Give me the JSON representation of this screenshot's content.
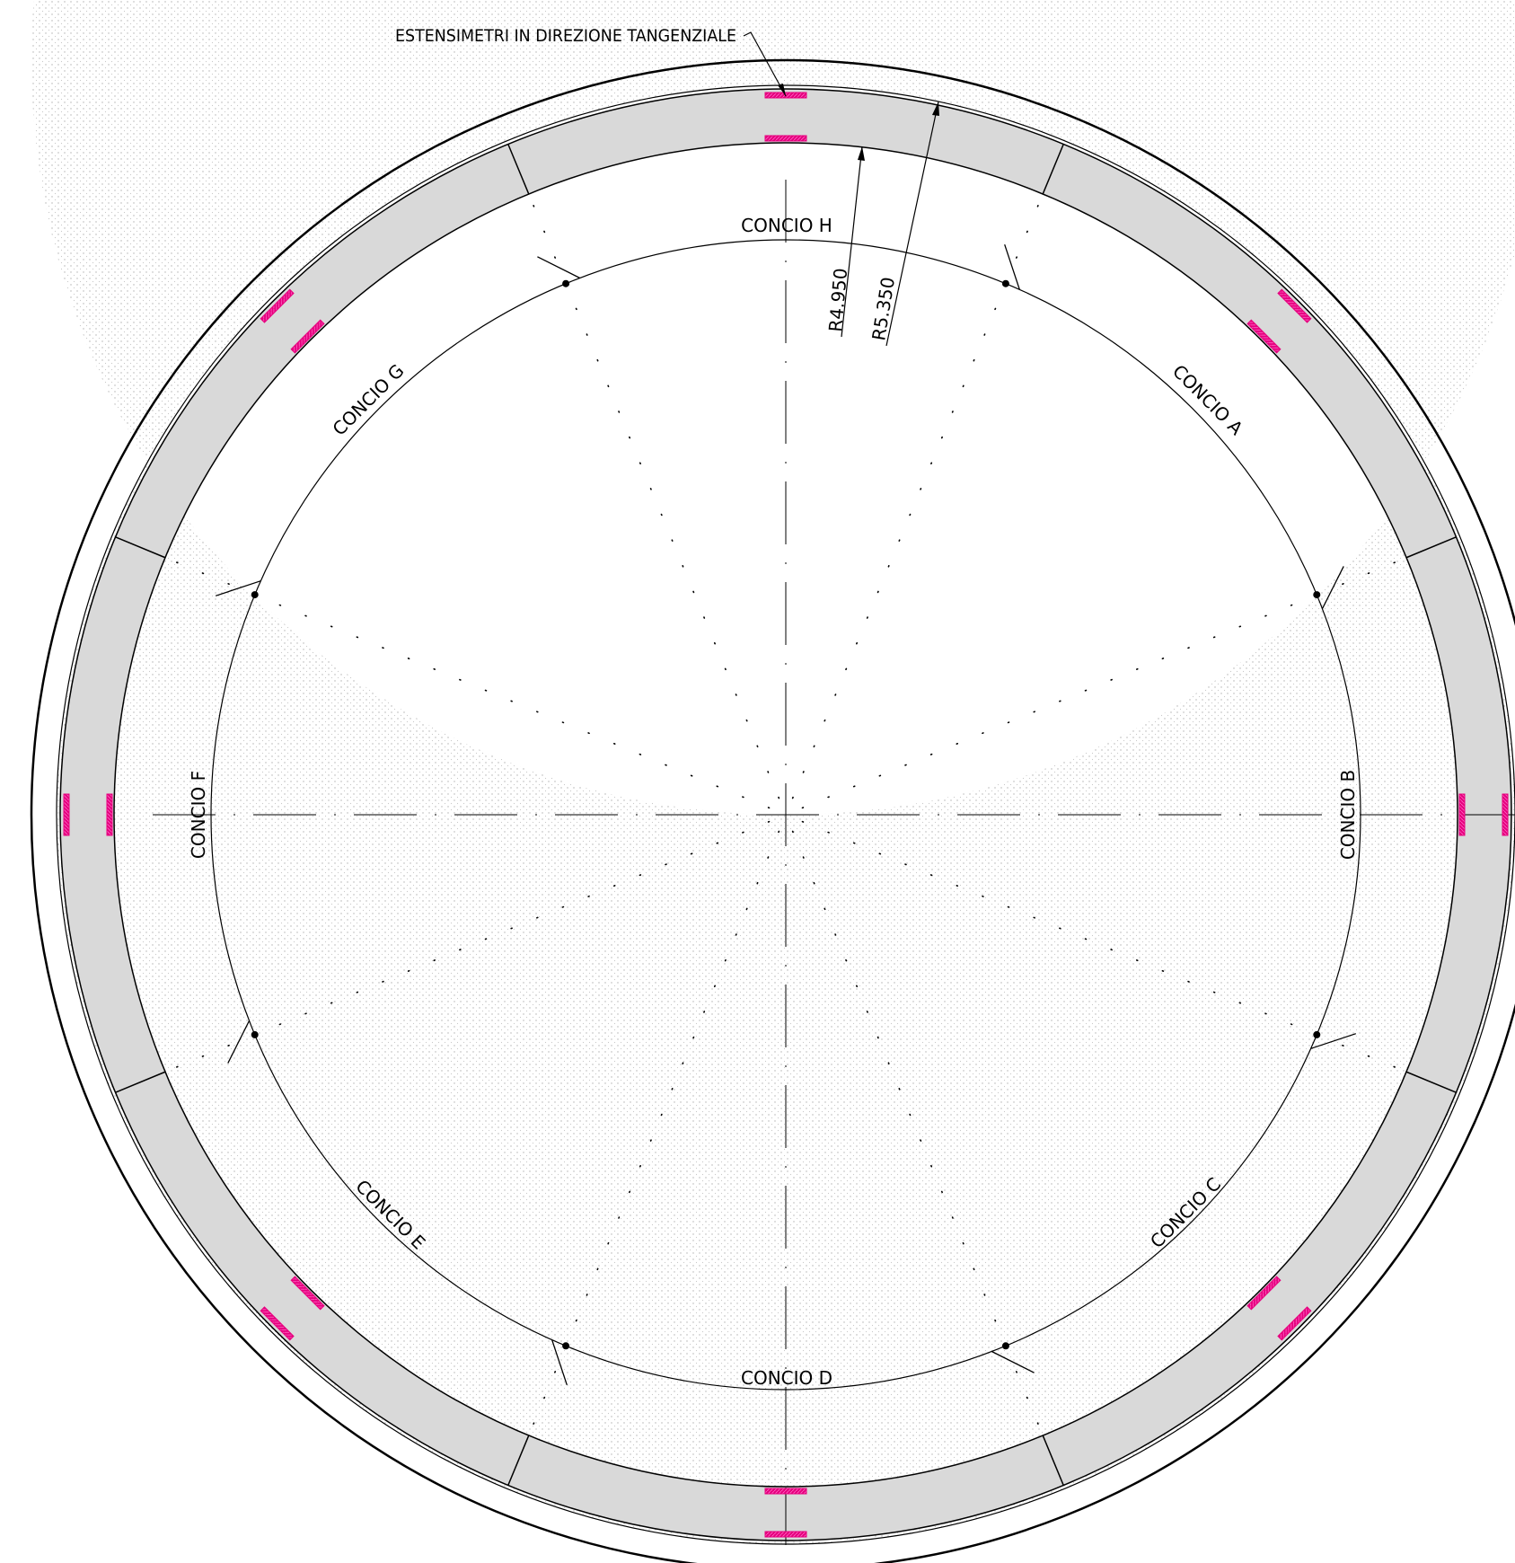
{
  "title_note": "ESTENSIMETRI IN DIREZIONE TANGENZIALE",
  "dimensions": {
    "inner_radius_label": "R4.950",
    "outer_radius_label": "R5.350"
  },
  "segments": {
    "h": "CONCIO H",
    "a": "CONCIO A",
    "b": "CONCIO B",
    "c": "CONCIO C",
    "d": "CONCIO D",
    "e": "CONCIO E",
    "f": "CONCIO F",
    "g": "CONCIO G"
  },
  "colors": {
    "lining_fill": "#d9d9d9",
    "gauge": "#e6007e",
    "line": "#000000",
    "grout_dots": "#b8b8b8"
  }
}
